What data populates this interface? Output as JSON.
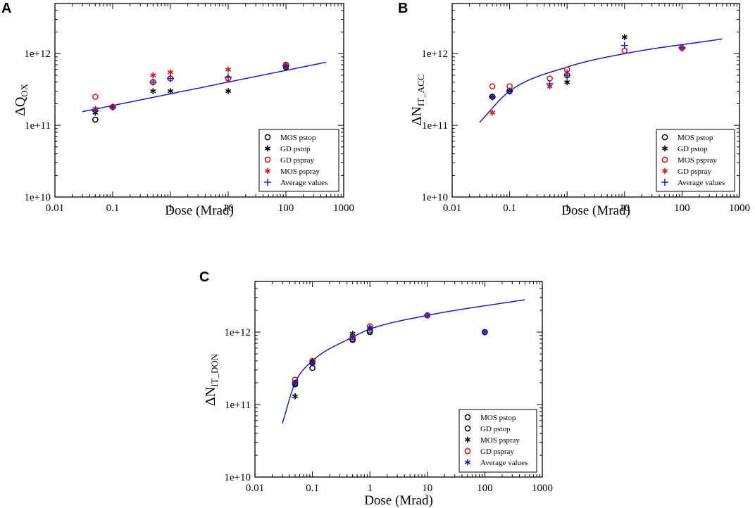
{
  "figure": {
    "colors": {
      "black": "#000000",
      "red": "#e01010",
      "blue": "#1a1acc"
    }
  },
  "chart_data": [
    {
      "panel": "A",
      "type": "scatter",
      "xscale": "log",
      "yscale": "log",
      "xlim": [
        0.01,
        1000
      ],
      "ylim": [
        10000000000.0,
        5000000000000.0
      ],
      "xticks": [
        "0.01",
        "0.1",
        "1",
        "10",
        "100",
        "1000"
      ],
      "yticks": [
        "1e+10",
        "1e+11",
        "1e+12"
      ],
      "xlabel": "Dose (Mrad)",
      "ylabel_main": "ΔQ",
      "ylabel_sub": "OX",
      "legend_position": "bottom-right",
      "fit": {
        "x_from": 0.03,
        "x_to": 500,
        "anchor_x": [
          0.03,
          500
        ],
        "anchor_y": [
          155000000000.0,
          760000000000.0
        ]
      },
      "series": [
        {
          "name": "MOS pstop",
          "marker": "circle",
          "color": "#000000",
          "x": [
            0.05,
            0.1,
            0.5,
            1,
            10,
            100
          ],
          "y": [
            120000000000.0,
            180000000000.0,
            400000000000.0,
            450000000000.0,
            450000000000.0,
            650000000000.0
          ]
        },
        {
          "name": "GD pstop",
          "marker": "asterisk",
          "color": "#000000",
          "x": [
            0.05,
            0.1,
            0.5,
            1,
            10,
            100
          ],
          "y": [
            150000000000.0,
            180000000000.0,
            300000000000.0,
            300000000000.0,
            300000000000.0,
            650000000000.0
          ]
        },
        {
          "name": "GD pspray",
          "marker": "circle",
          "color": "#e01010",
          "x": [
            0.05,
            0.1,
            0.5,
            1,
            10,
            100
          ],
          "y": [
            250000000000.0,
            180000000000.0,
            400000000000.0,
            450000000000.0,
            450000000000.0,
            700000000000.0
          ]
        },
        {
          "name": "MOS pspray",
          "marker": "asterisk",
          "color": "#e01010",
          "x": [
            0.05,
            0.1,
            0.5,
            1,
            10,
            100
          ],
          "y": [
            170000000000.0,
            180000000000.0,
            500000000000.0,
            550000000000.0,
            600000000000.0,
            700000000000.0
          ]
        },
        {
          "name": "Average values",
          "marker": "plus",
          "color": "#1a1acc",
          "x": [
            0.05,
            0.1,
            0.5,
            1,
            10,
            100
          ],
          "y": [
            160000000000.0,
            180000000000.0,
            400000000000.0,
            450000000000.0,
            470000000000.0,
            680000000000.0
          ]
        }
      ]
    },
    {
      "panel": "B",
      "type": "scatter",
      "xscale": "log",
      "yscale": "log",
      "xlim": [
        0.01,
        1000
      ],
      "ylim": [
        10000000000.0,
        5000000000000.0
      ],
      "xticks": [
        "0.01",
        "0.1",
        "1",
        "10",
        "100",
        "1000"
      ],
      "yticks": [
        "1e+10",
        "1e+11",
        "1e+12"
      ],
      "xlabel": "Dose (Mrad)",
      "ylabel_main": "ΔN",
      "ylabel_sub": "IT_ACC",
      "legend_position": "bottom-right",
      "fit": {
        "x_from": 0.03,
        "x_to": 500,
        "anchor_x": [
          0.03,
          0.1,
          1,
          10,
          500
        ],
        "anchor_y": [
          110000000000.0,
          300000000000.0,
          650000000000.0,
          1000000000000.0,
          1600000000000.0
        ]
      },
      "series": [
        {
          "name": "MOS pstop",
          "marker": "circle",
          "color": "#000000",
          "x": [
            0.05,
            0.1,
            1
          ],
          "y": [
            250000000000.0,
            300000000000.0,
            500000000000.0
          ]
        },
        {
          "name": "GD pstop",
          "marker": "asterisk",
          "color": "#000000",
          "x": [
            0.05,
            0.1,
            1,
            10
          ],
          "y": [
            250000000000.0,
            300000000000.0,
            400000000000.0,
            1700000000000.0
          ]
        },
        {
          "name": "MOS pspray",
          "marker": "circle",
          "color": "#e01010",
          "x": [
            0.05,
            0.1,
            0.5,
            1,
            10,
            100
          ],
          "y": [
            350000000000.0,
            350000000000.0,
            450000000000.0,
            600000000000.0,
            1100000000000.0,
            1200000000000.0
          ]
        },
        {
          "name": "GD pspray",
          "marker": "asterisk",
          "color": "#e01010",
          "x": [
            0.05,
            0.5,
            1,
            100
          ],
          "y": [
            150000000000.0,
            350000000000.0,
            550000000000.0,
            1200000000000.0
          ]
        },
        {
          "name": "Average values",
          "marker": "plus",
          "color": "#1a1acc",
          "x": [
            0.05,
            0.1,
            0.5,
            1,
            10,
            100
          ],
          "y": [
            250000000000.0,
            300000000000.0,
            380000000000.0,
            500000000000.0,
            1300000000000.0,
            1200000000000.0
          ]
        }
      ]
    },
    {
      "panel": "C",
      "type": "scatter",
      "xscale": "log",
      "yscale": "log",
      "xlim": [
        0.01,
        1000
      ],
      "ylim": [
        10000000000.0,
        5000000000000.0
      ],
      "xticks": [
        "0.01",
        "0.1",
        "1",
        "10",
        "100",
        "1000"
      ],
      "yticks": [
        "1e+10",
        "1e+11",
        "1e+12"
      ],
      "xlabel": "Dose (Mrad)",
      "ylabel_main": "ΔN",
      "ylabel_sub": "IT_DON",
      "legend_position": "bottom-right",
      "fit": {
        "x_from": 0.03,
        "x_to": 500,
        "anchor_x": [
          0.03,
          0.05,
          0.1,
          0.5,
          1,
          10,
          500
        ],
        "anchor_y": [
          55000000000.0,
          200000000000.0,
          400000000000.0,
          850000000000.0,
          1100000000000.0,
          1700000000000.0,
          2800000000000.0
        ]
      },
      "series": [
        {
          "name": "MOS pstop",
          "marker": "circle",
          "color": "#000000",
          "x": [
            0.05,
            0.1,
            0.5,
            1,
            10,
            100
          ],
          "y": [
            200000000000.0,
            320000000000.0,
            780000000000.0,
            1000000000000.0,
            1700000000000.0,
            1000000000000.0
          ]
        },
        {
          "name": "GD pstop",
          "marker": "circle",
          "color": "#000000",
          "x": [
            0.05,
            0.1,
            0.5,
            1,
            10,
            100
          ],
          "y": [
            190000000000.0,
            380000000000.0,
            800000000000.0,
            1050000000000.0,
            1700000000000.0,
            1000000000000.0
          ]
        },
        {
          "name": "MOS pspray",
          "marker": "asterisk",
          "color": "#000000",
          "x": [
            0.05,
            0.1,
            0.5,
            1
          ],
          "y": [
            130000000000.0,
            400000000000.0,
            950000000000.0,
            1150000000000.0
          ]
        },
        {
          "name": "GD pspray",
          "marker": "circle",
          "color": "#e01010",
          "x": [
            0.05,
            0.1,
            0.5,
            1,
            10
          ],
          "y": [
            220000000000.0,
            400000000000.0,
            850000000000.0,
            1200000000000.0,
            1700000000000.0
          ]
        },
        {
          "name": "Average values",
          "marker": "asterisk",
          "color": "#1a1acc",
          "x": [
            0.05,
            0.1,
            0.5,
            1,
            10,
            100
          ],
          "y": [
            195000000000.0,
            370000000000.0,
            850000000000.0,
            1100000000000.0,
            1700000000000.0,
            1000000000000.0
          ]
        }
      ]
    }
  ]
}
